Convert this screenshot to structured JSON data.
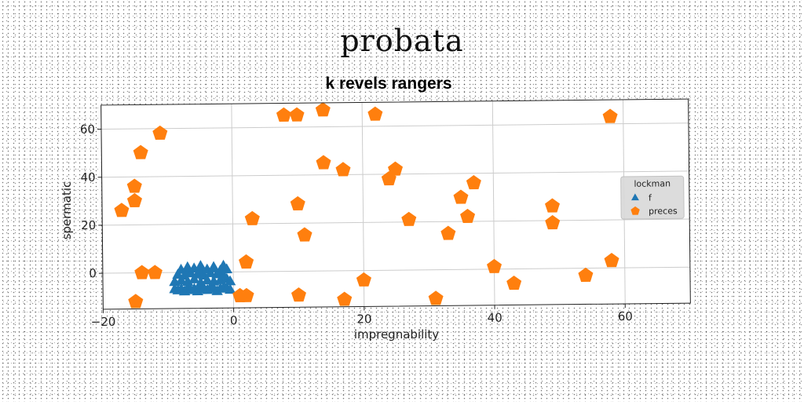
{
  "figure": {
    "suptitle": "probata"
  },
  "colors": {
    "series_f": "#1f77b4",
    "series_preces": "#ff7f0e",
    "grid": "#cccccc",
    "legend_bg": "#d9d9d9"
  },
  "chart_data": {
    "type": "scatter",
    "title": "k revels rangers",
    "xlabel": "impregnability",
    "ylabel": "spermatic",
    "xlim": [
      -20,
      70
    ],
    "ylim": [
      -15,
      70
    ],
    "xticks": [
      -20,
      0,
      20,
      40,
      60
    ],
    "yticks": [
      0,
      20,
      40,
      60
    ],
    "xtick_labels": [
      "−20",
      "0",
      "20",
      "40",
      "60"
    ],
    "ytick_labels": [
      "0",
      "20",
      "40",
      "60"
    ],
    "grid": true,
    "legend": {
      "title": "lockman",
      "placement": "right"
    },
    "series": [
      {
        "name": "f",
        "marker": "triangle",
        "x": [
          -9,
          -8.5,
          -8,
          -7.5,
          -7,
          -6.5,
          -6,
          -5.5,
          -5,
          -4.5,
          -4,
          -3.5,
          -3,
          -2.5,
          -2,
          -1.5,
          -1,
          -0.5,
          -9,
          -8,
          -7,
          -6,
          -5,
          -4,
          -3,
          -2,
          -1,
          -0.5,
          -8.5,
          -7.5,
          -6.5,
          -5.5,
          -4.5,
          -3.5,
          -2.5,
          -1.5,
          -8,
          -7,
          -6,
          -5,
          -4,
          -3,
          -2,
          -1,
          -7,
          -5,
          -3,
          -1.5
        ],
        "y": [
          -7,
          -7.5,
          -7,
          -8,
          -6.5,
          -7.5,
          -7,
          -8,
          -6.5,
          -7,
          -7.5,
          -6.5,
          -7,
          -8,
          -7,
          -6.5,
          -7,
          -7.5,
          -4,
          -3.5,
          -4,
          -3,
          -4.5,
          -3.5,
          -4,
          -3.5,
          -3,
          -4,
          -1,
          -1.5,
          -0.5,
          -1,
          -1.5,
          -0.5,
          -1,
          -1.5,
          1,
          0.5,
          1.5,
          0.5,
          1,
          1.5,
          0.5,
          1,
          2,
          2.5,
          2,
          2.5
        ]
      },
      {
        "name": "preces",
        "marker": "pentagon",
        "x": [
          -17,
          -15,
          -14,
          -11,
          -15,
          -14,
          -15,
          -12,
          8,
          10,
          14,
          22,
          14,
          17,
          25,
          24,
          2,
          3,
          10,
          11,
          2,
          1,
          10,
          17,
          20,
          27,
          35,
          37,
          36,
          33,
          40,
          43,
          31,
          49,
          49,
          58,
          58,
          54
        ],
        "y": [
          26,
          36,
          50,
          58,
          30,
          0,
          -12,
          0,
          65,
          65,
          67,
          65,
          45,
          42,
          42,
          38,
          4,
          22,
          28,
          15,
          -10,
          -10,
          -10,
          -12,
          -4,
          21,
          30,
          36,
          22,
          15,
          1,
          -6,
          -12,
          26,
          19,
          63,
          3,
          -3
        ]
      }
    ]
  }
}
